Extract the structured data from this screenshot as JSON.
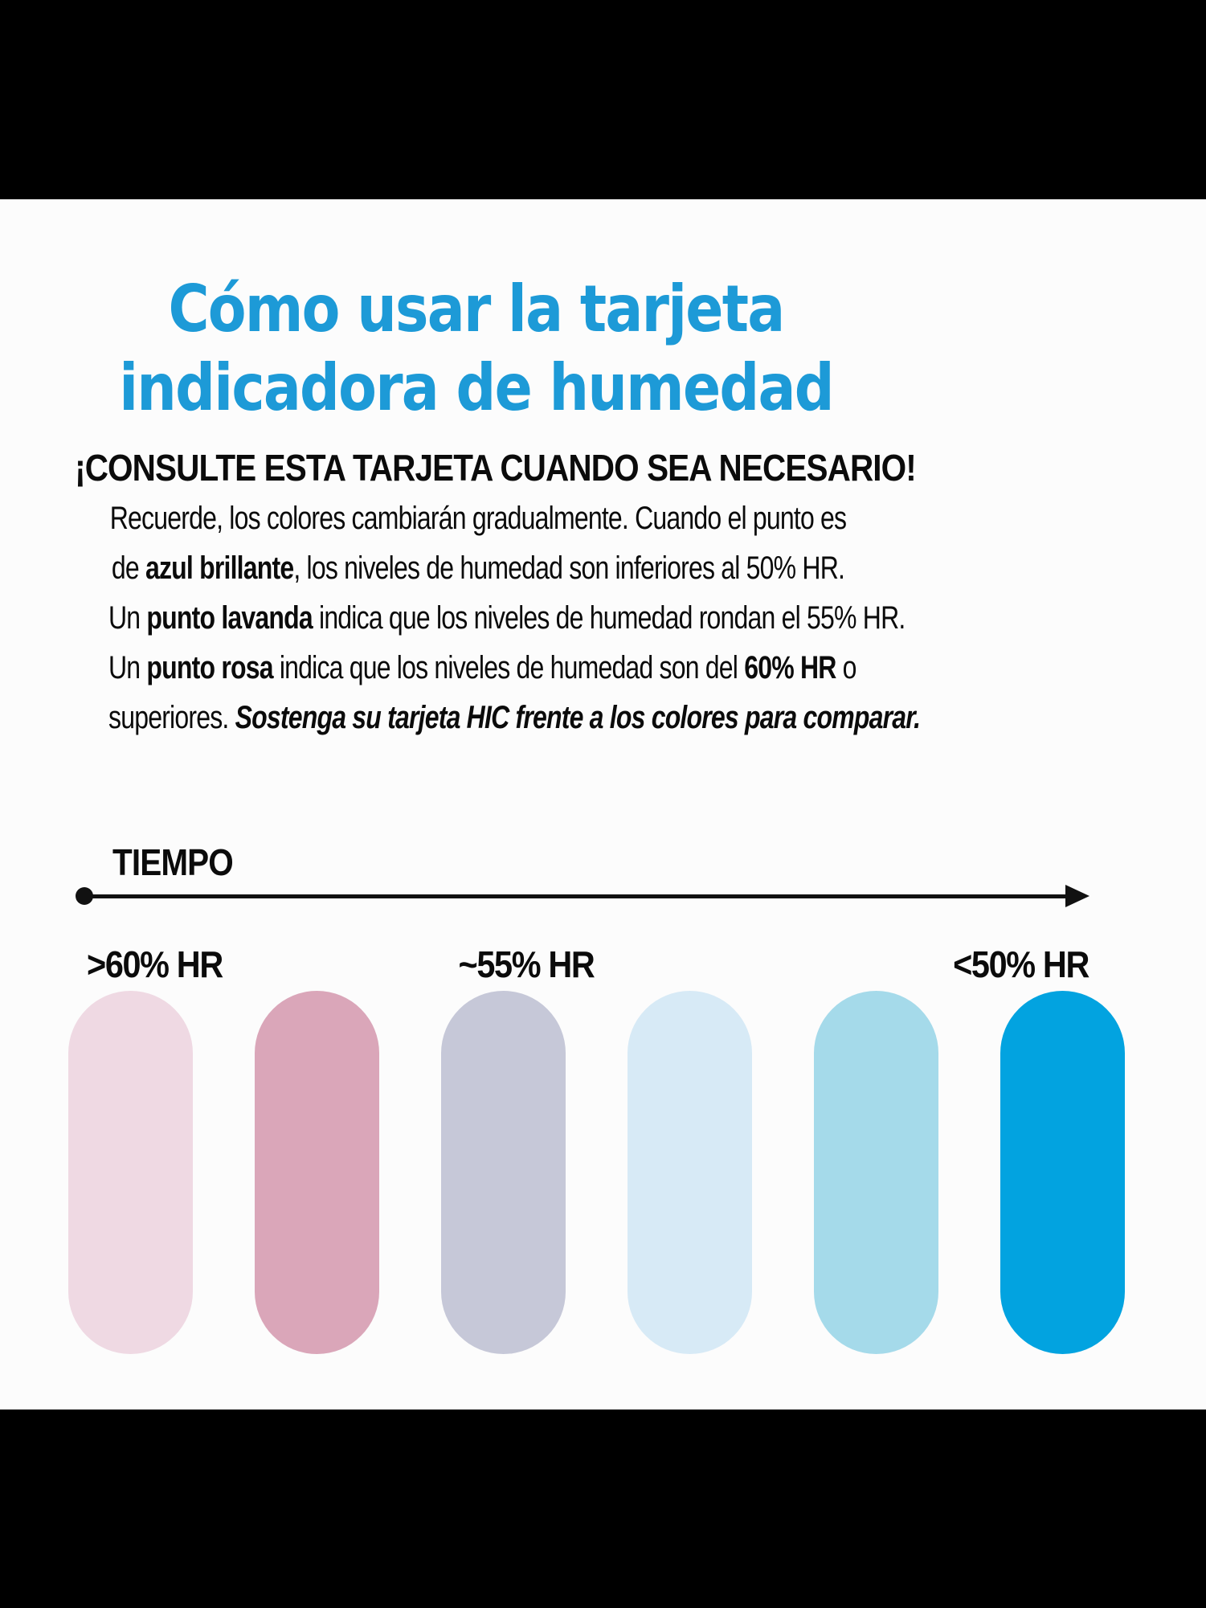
{
  "title": {
    "lines": [
      "Cómo usar la tarjeta",
      "indicadora de humedad"
    ],
    "color": "#1d9ad7"
  },
  "subtitle": "¡CONSULTE ESTA TARJETA CUANDO SEA NECESARIO!",
  "paragraph": {
    "lines": [
      {
        "segs": [
          {
            "t": "Recuerde, los colores cambiarán gradualmente. Cuando el punto es"
          }
        ]
      },
      {
        "segs": [
          {
            "t": "de "
          },
          {
            "t": "azul brillante"
          },
          {
            "t": ", los niveles de humedad son inferiores al 50% HR."
          }
        ]
      },
      {
        "segs": [
          {
            "t": "Un "
          },
          {
            "t": "punto lavanda"
          },
          {
            "t": " indica que los niveles de humedad rondan el 55% HR."
          }
        ]
      },
      {
        "segs": [
          {
            "t": "Un "
          },
          {
            "t": "punto rosa"
          },
          {
            "t": " indica que los niveles de humedad son del "
          },
          {
            "t": "60% HR"
          },
          {
            "t": " o"
          }
        ]
      },
      {
        "segs": [
          {
            "t": "superiores. "
          },
          {
            "t": "Sostenga su tarjeta HIC frente a los colores para comparar."
          }
        ]
      }
    ]
  },
  "timeline": {
    "label": "TIEMPO"
  },
  "humidity_labels": [
    {
      "text": ">60% HR"
    },
    {
      "text": "~55% HR"
    },
    {
      "text": "<50% HR"
    }
  ],
  "swatches": [
    {
      "name": "rosa-palido",
      "color": "#efd9e3"
    },
    {
      "name": "rosa",
      "color": "#daa6b9"
    },
    {
      "name": "lavanda",
      "color": "#c6c8d8"
    },
    {
      "name": "azul-muy-claro",
      "color": "#d7eaf6"
    },
    {
      "name": "azul-claro",
      "color": "#a5daea"
    },
    {
      "name": "azul-brillante",
      "color": "#02a3e0"
    }
  ]
}
